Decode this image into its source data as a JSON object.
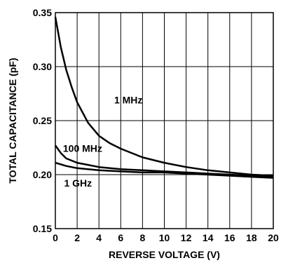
{
  "chart_data": {
    "type": "line",
    "xlabel": "REVERSE VOLTAGE (V)",
    "ylabel": "TOTAL CAPACITANCE (pF)",
    "xlim": [
      0,
      20
    ],
    "ylim": [
      0.15,
      0.35
    ],
    "grid": true,
    "x_ticks": [
      "0",
      "2",
      "4",
      "6",
      "8",
      "10",
      "12",
      "14",
      "16",
      "18",
      "20"
    ],
    "y_ticks": [
      "0.15",
      "0.20",
      "0.25",
      "0.30",
      "0.35"
    ],
    "series": [
      {
        "name": "1 MHz",
        "x": [
          0,
          0.5,
          1,
          1.5,
          2,
          3,
          4,
          5,
          6,
          8,
          10,
          12,
          14,
          16,
          18,
          20
        ],
        "y": [
          0.346,
          0.318,
          0.297,
          0.281,
          0.267,
          0.248,
          0.236,
          0.229,
          0.224,
          0.216,
          0.211,
          0.207,
          0.204,
          0.202,
          0.2,
          0.199
        ]
      },
      {
        "name": "100 MHz",
        "x": [
          0,
          0.5,
          1,
          2,
          3,
          4,
          6,
          8,
          10,
          12,
          14,
          16,
          18,
          20
        ],
        "y": [
          0.227,
          0.22,
          0.215,
          0.211,
          0.209,
          0.207,
          0.205,
          0.204,
          0.203,
          0.202,
          0.201,
          0.2,
          0.199,
          0.198
        ]
      },
      {
        "name": "1 GHz",
        "x": [
          0,
          1,
          2,
          4,
          6,
          8,
          10,
          12,
          14,
          16,
          18,
          20
        ],
        "y": [
          0.211,
          0.208,
          0.206,
          0.204,
          0.203,
          0.202,
          0.202,
          0.201,
          0.2,
          0.199,
          0.198,
          0.197
        ]
      }
    ]
  }
}
